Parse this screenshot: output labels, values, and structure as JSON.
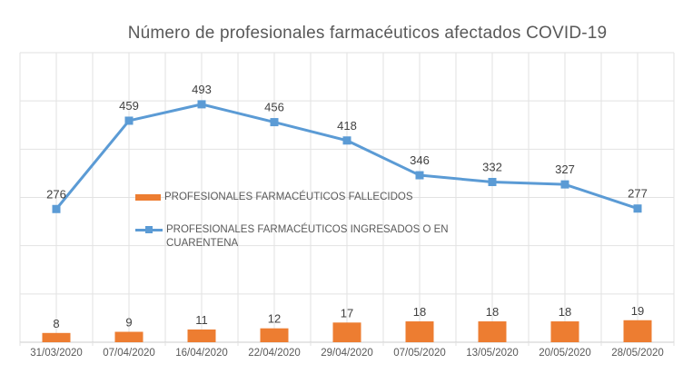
{
  "title": "Número de profesionales farmacéuticos afectados COVID-19",
  "legend": {
    "items": [
      {
        "label": "PROFESIONALES FARMACÉUTICOS FALLECIDOS",
        "swatch": "bar",
        "color": "#ED7D31"
      },
      {
        "label": "PROFESIONALES FARMACÉUTICOS INGRESADOS O EN CUARENTENA",
        "label_line1": "PROFESIONALES FARMACÉUTICOS INGRESADOS O EN",
        "label_line2": "CUARENTENA",
        "swatch": "line-marker",
        "color": "#5B9BD5"
      }
    ]
  },
  "chart_data": {
    "type": "combo",
    "title": "Número de profesionales farmacéuticos afectados COVID-19",
    "categories": [
      "31/03/2020",
      "07/04/2020",
      "16/04/2020",
      "22/04/2020",
      "29/04/2020",
      "07/05/2020",
      "13/05/2020",
      "20/05/2020",
      "28/05/2020"
    ],
    "series": [
      {
        "name": "PROFESIONALES FARMACÉUTICOS FALLECIDOS",
        "type": "bar",
        "axis": "secondary",
        "color": "#ED7D31",
        "values": [
          8,
          9,
          11,
          12,
          17,
          18,
          18,
          18,
          19
        ]
      },
      {
        "name": "PROFESIONALES FARMACÉUTICOS INGRESADOS O EN CUARENTENA",
        "type": "line",
        "axis": "primary",
        "color": "#5B9BD5",
        "marker": "square",
        "values": [
          276,
          459,
          493,
          456,
          418,
          346,
          332,
          327,
          277
        ]
      }
    ],
    "xlabel": "",
    "ylabel": "",
    "primary_ylim": [
      0,
      600
    ],
    "secondary_ylim": [
      0,
      250
    ],
    "grid": true,
    "data_labels": true,
    "legend_position": "inside-center-left",
    "colors": {
      "line": "#5B9BD5",
      "bar": "#ED7D31",
      "gridline": "#E2E2E2",
      "axis_line": "#CCCCCC",
      "data_label": "#404040",
      "axis_label": "#595959",
      "title": "#595959"
    }
  }
}
